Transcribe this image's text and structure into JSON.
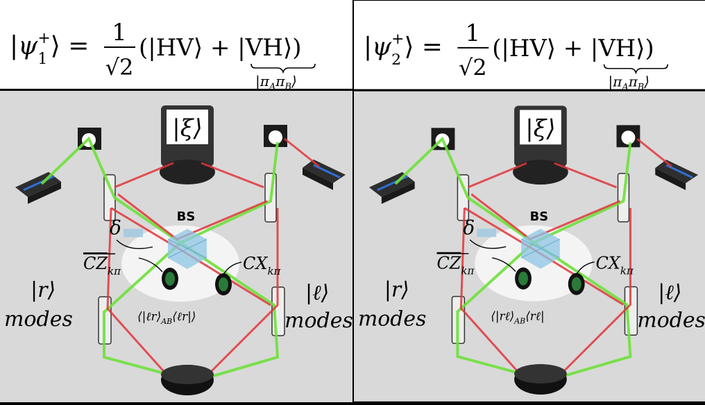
{
  "colors": {
    "red_beam": "#e0353a",
    "green_beam": "#6ee03a",
    "panel_bg": "#d9d9d9",
    "beam_splitter": "#8ec6e6",
    "detector": "#111111"
  },
  "panels": [
    {
      "state_lhs": "|ψ",
      "state_sub": "1",
      "state_sup": "+",
      "state_eq": "⟩ =",
      "frac_num": "1",
      "frac_den": "√2",
      "state_rhs": "(|HV⟩ + |VH⟩)",
      "brace_label": "|π",
      "brace_sub_a": "A",
      "brace_mid": "π",
      "brace_sub_b": "B",
      "brace_end": "⟩",
      "source_label": "|ξ⟩",
      "bs_label": "BS",
      "delta_label": "δ",
      "cz_label": "CZ",
      "cz_sub": "kπ",
      "cx_label": "CX",
      "cx_sub": "kπ",
      "left_mode_ket": "|r⟩",
      "left_mode_word": "modes",
      "right_mode_ket": "|ℓ⟩",
      "right_mode_word": "modes",
      "projector_label": "⟨|ℓr⟩",
      "projector_sub": "AB",
      "projector_end": "⟨ℓr|⟩"
    },
    {
      "state_lhs": "|ψ",
      "state_sub": "2",
      "state_sup": "+",
      "state_eq": "⟩ =",
      "frac_num": "1",
      "frac_den": "√2",
      "state_rhs": "(|HV⟩ + |VH⟩)",
      "brace_label": "|π",
      "brace_sub_a": "A",
      "brace_mid": "π",
      "brace_sub_b": "B",
      "brace_end": "⟩",
      "source_label": "|ξ⟩",
      "bs_label": "BS",
      "delta_label": "δ",
      "cz_label": "CZ",
      "cz_sub": "kπ",
      "cx_label": "CX",
      "cx_sub": "kπ",
      "left_mode_ket": "|r⟩",
      "left_mode_word": "modes",
      "right_mode_ket": "|ℓ⟩",
      "right_mode_word": "modes",
      "projector_label": "⟨|rℓ⟩",
      "projector_sub": "AB",
      "projector_end": "⟨rℓ|"
    }
  ]
}
